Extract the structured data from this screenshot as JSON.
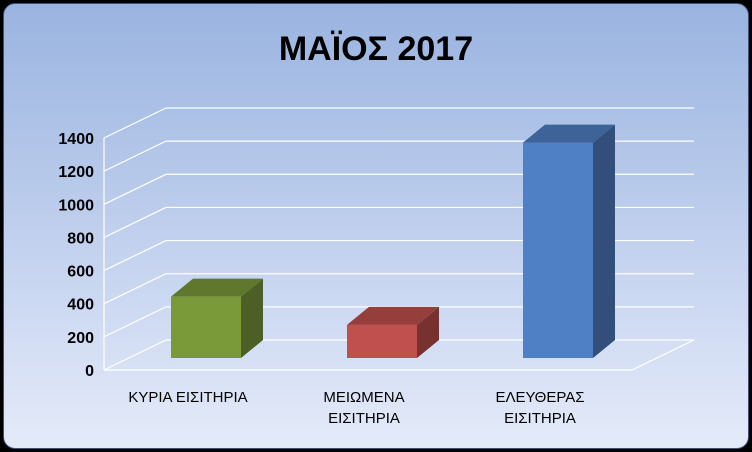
{
  "chart_data": {
    "type": "bar",
    "title": "ΜΑΪΟΣ 2017",
    "categories": [
      [
        "ΚΥΡΙΑ ΕΙΣΙΤΗΡΙΑ"
      ],
      [
        "ΜΕΙΩΜΕΝΑ",
        "ΕΙΣΙΤΗΡΙΑ"
      ],
      [
        "ΕΛΕΥΘΕΡΑΣ",
        "ΕΙΣΙΤΗΡΙΑ"
      ]
    ],
    "values": [
      370,
      200,
      1300
    ],
    "colors": [
      "#7a9a3a",
      "#c0504d",
      "#4f7fc4"
    ],
    "ylim": [
      0,
      1400
    ],
    "yticks": [
      "0",
      "200",
      "400",
      "600",
      "800",
      "1000",
      "1200",
      "1400"
    ],
    "grid": true,
    "style": "3d-column",
    "xlabel": "",
    "ylabel": ""
  }
}
